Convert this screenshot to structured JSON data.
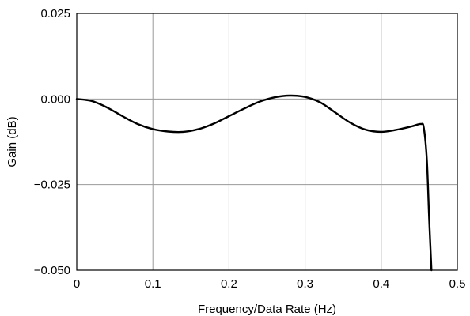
{
  "chart_data": {
    "type": "line",
    "title": "",
    "xlabel": "Frequency/Data Rate (Hz)",
    "ylabel": "Gain (dB)",
    "xlim": [
      0,
      0.5
    ],
    "ylim": [
      -0.05,
      0.025
    ],
    "x_ticks": [
      0,
      0.1,
      0.2,
      0.3,
      0.4,
      0.5
    ],
    "x_tick_labels": [
      "0",
      "0.1",
      "0.2",
      "0.3",
      "0.4",
      "0.5"
    ],
    "y_ticks": [
      0.025,
      0.0,
      -0.025,
      -0.05
    ],
    "y_tick_labels": [
      "0.025",
      "0.000",
      "−0.025",
      "−0.050"
    ],
    "grid": true,
    "series": [
      {
        "color": "#000000",
        "x": [
          0,
          0.02,
          0.04,
          0.06,
          0.08,
          0.1,
          0.12,
          0.14,
          0.16,
          0.18,
          0.2,
          0.22,
          0.24,
          0.26,
          0.28,
          0.3,
          0.32,
          0.34,
          0.36,
          0.38,
          0.4,
          0.42,
          0.44,
          0.452,
          0.456,
          0.46,
          0.463,
          0.466
        ],
        "y": [
          0.0,
          -0.0006,
          -0.0025,
          -0.005,
          -0.0073,
          -0.0088,
          -0.0095,
          -0.0096,
          -0.0088,
          -0.0072,
          -0.005,
          -0.0028,
          -0.0008,
          0.0005,
          0.001,
          0.0006,
          -0.001,
          -0.004,
          -0.007,
          -0.009,
          -0.0096,
          -0.009,
          -0.008,
          -0.0073,
          -0.0085,
          -0.018,
          -0.035,
          -0.05
        ]
      }
    ]
  }
}
